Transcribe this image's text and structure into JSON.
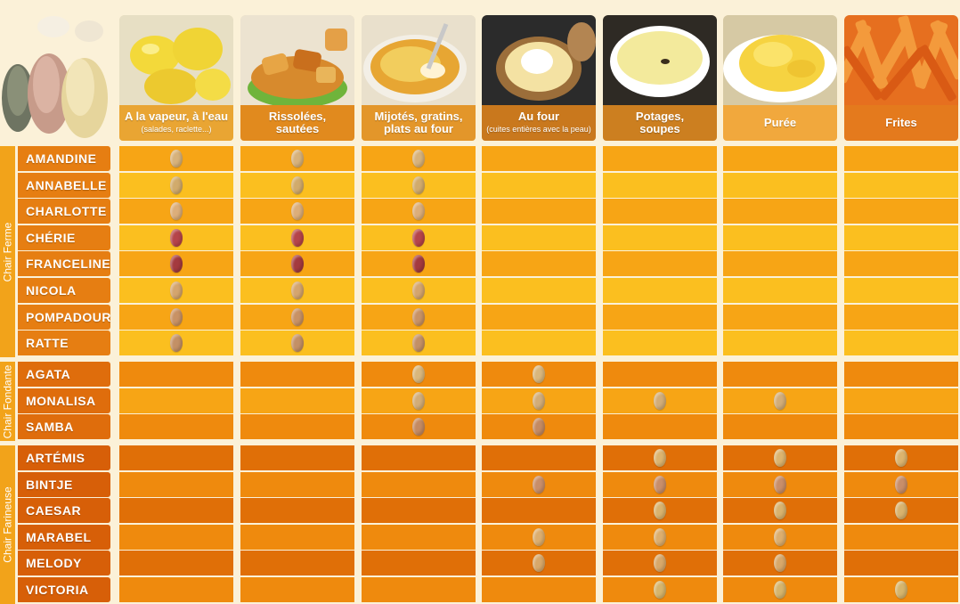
{
  "columns": [
    {
      "id": "vapeur",
      "title": "A la vapeur, à l'eau",
      "subtitle": "(salades, raclette...)",
      "cap_color": "#e9a533",
      "photo": "steamed-potatoes"
    },
    {
      "id": "rissolees",
      "title": "Rissolées,",
      "subtitle2": "sautées",
      "cap_color": "#e18a1e",
      "photo": "sauteed-potatoes"
    },
    {
      "id": "gratins",
      "title": "Mijotés, gratins,",
      "subtitle2": "plats au four",
      "cap_color": "#e3962a",
      "photo": "gratin-dish"
    },
    {
      "id": "four",
      "title": "Au four",
      "subtitle": "(cuites entières avec la peau)",
      "cap_color": "#c9781d",
      "photo": "baked-potato"
    },
    {
      "id": "potages",
      "title": "Potages,",
      "subtitle2": "soupes",
      "cap_color": "#cc7f20",
      "photo": "soup-bowl"
    },
    {
      "id": "puree",
      "title": "Purée",
      "cap_color": "#f1a83d",
      "photo": "mashed-potatoes"
    },
    {
      "id": "frites",
      "title": "Frites",
      "cap_color": "#e47a1d",
      "photo": "french-fries"
    }
  ],
  "groups": [
    {
      "label": "Chair Ferme",
      "varieties": [
        {
          "name": "AMANDINE",
          "marks": [
            1,
            1,
            1,
            0,
            0,
            0,
            0
          ],
          "tuber": "#d7b27b"
        },
        {
          "name": "ANNABELLE",
          "marks": [
            1,
            1,
            1,
            0,
            0,
            0,
            0
          ],
          "tuber": "#d1ab6c"
        },
        {
          "name": "CHARLOTTE",
          "marks": [
            1,
            1,
            1,
            0,
            0,
            0,
            0
          ],
          "tuber": "#dcae7a"
        },
        {
          "name": "CHÉRIE",
          "marks": [
            1,
            1,
            1,
            0,
            0,
            0,
            0
          ],
          "tuber": "#b5444a"
        },
        {
          "name": "FRANCELINE",
          "marks": [
            1,
            1,
            1,
            0,
            0,
            0,
            0
          ],
          "tuber": "#a43a3f"
        },
        {
          "name": "NICOLA",
          "marks": [
            1,
            1,
            1,
            0,
            0,
            0,
            0
          ],
          "tuber": "#d4a56e"
        },
        {
          "name": "POMPADOUR",
          "marks": [
            1,
            1,
            1,
            0,
            0,
            0,
            0
          ],
          "tuber": "#c89265"
        },
        {
          "name": "RATTE",
          "marks": [
            1,
            1,
            1,
            0,
            0,
            0,
            0
          ],
          "tuber": "#c39066"
        }
      ]
    },
    {
      "label": "Chair Fondante",
      "varieties": [
        {
          "name": "AGATA",
          "marks": [
            0,
            0,
            1,
            1,
            0,
            0,
            0
          ],
          "tuber": "#d9b77d"
        },
        {
          "name": "MONALISA",
          "marks": [
            0,
            0,
            1,
            1,
            1,
            1,
            0
          ],
          "tuber": "#d2ad78"
        },
        {
          "name": "SAMBA",
          "marks": [
            0,
            0,
            1,
            1,
            0,
            0,
            0
          ],
          "tuber": "#c48a62"
        }
      ]
    },
    {
      "label": "Chair Farineuse",
      "varieties": [
        {
          "name": "ARTÉMIS",
          "marks": [
            0,
            0,
            0,
            0,
            1,
            1,
            1
          ],
          "tuber": "#dcb46f"
        },
        {
          "name": "BINTJE",
          "marks": [
            0,
            0,
            0,
            1,
            1,
            1,
            1
          ],
          "tuber": "#c88e6a"
        },
        {
          "name": "CAESAR",
          "marks": [
            0,
            0,
            0,
            0,
            1,
            1,
            1
          ],
          "tuber": "#d9b36e"
        },
        {
          "name": "MARABEL",
          "marks": [
            0,
            0,
            0,
            1,
            1,
            1,
            0
          ],
          "tuber": "#dcae6e"
        },
        {
          "name": "MELODY",
          "marks": [
            0,
            0,
            0,
            1,
            1,
            1,
            0
          ],
          "tuber": "#d8a86a"
        },
        {
          "name": "VICTORIA",
          "marks": [
            0,
            0,
            0,
            0,
            1,
            1,
            1
          ],
          "tuber": "#d6b56c"
        }
      ]
    }
  ],
  "colors": {
    "band_light": "#fbbf1f",
    "band_mid": "#f7a515",
    "band_dark": "#ef8a0d",
    "farineuse_dark": "#e06f07",
    "name_ferme": "#e67e12",
    "name_fondante": "#df6d0c",
    "name_farineuse": "#d75f08",
    "label_bg": "#f2a31a"
  }
}
